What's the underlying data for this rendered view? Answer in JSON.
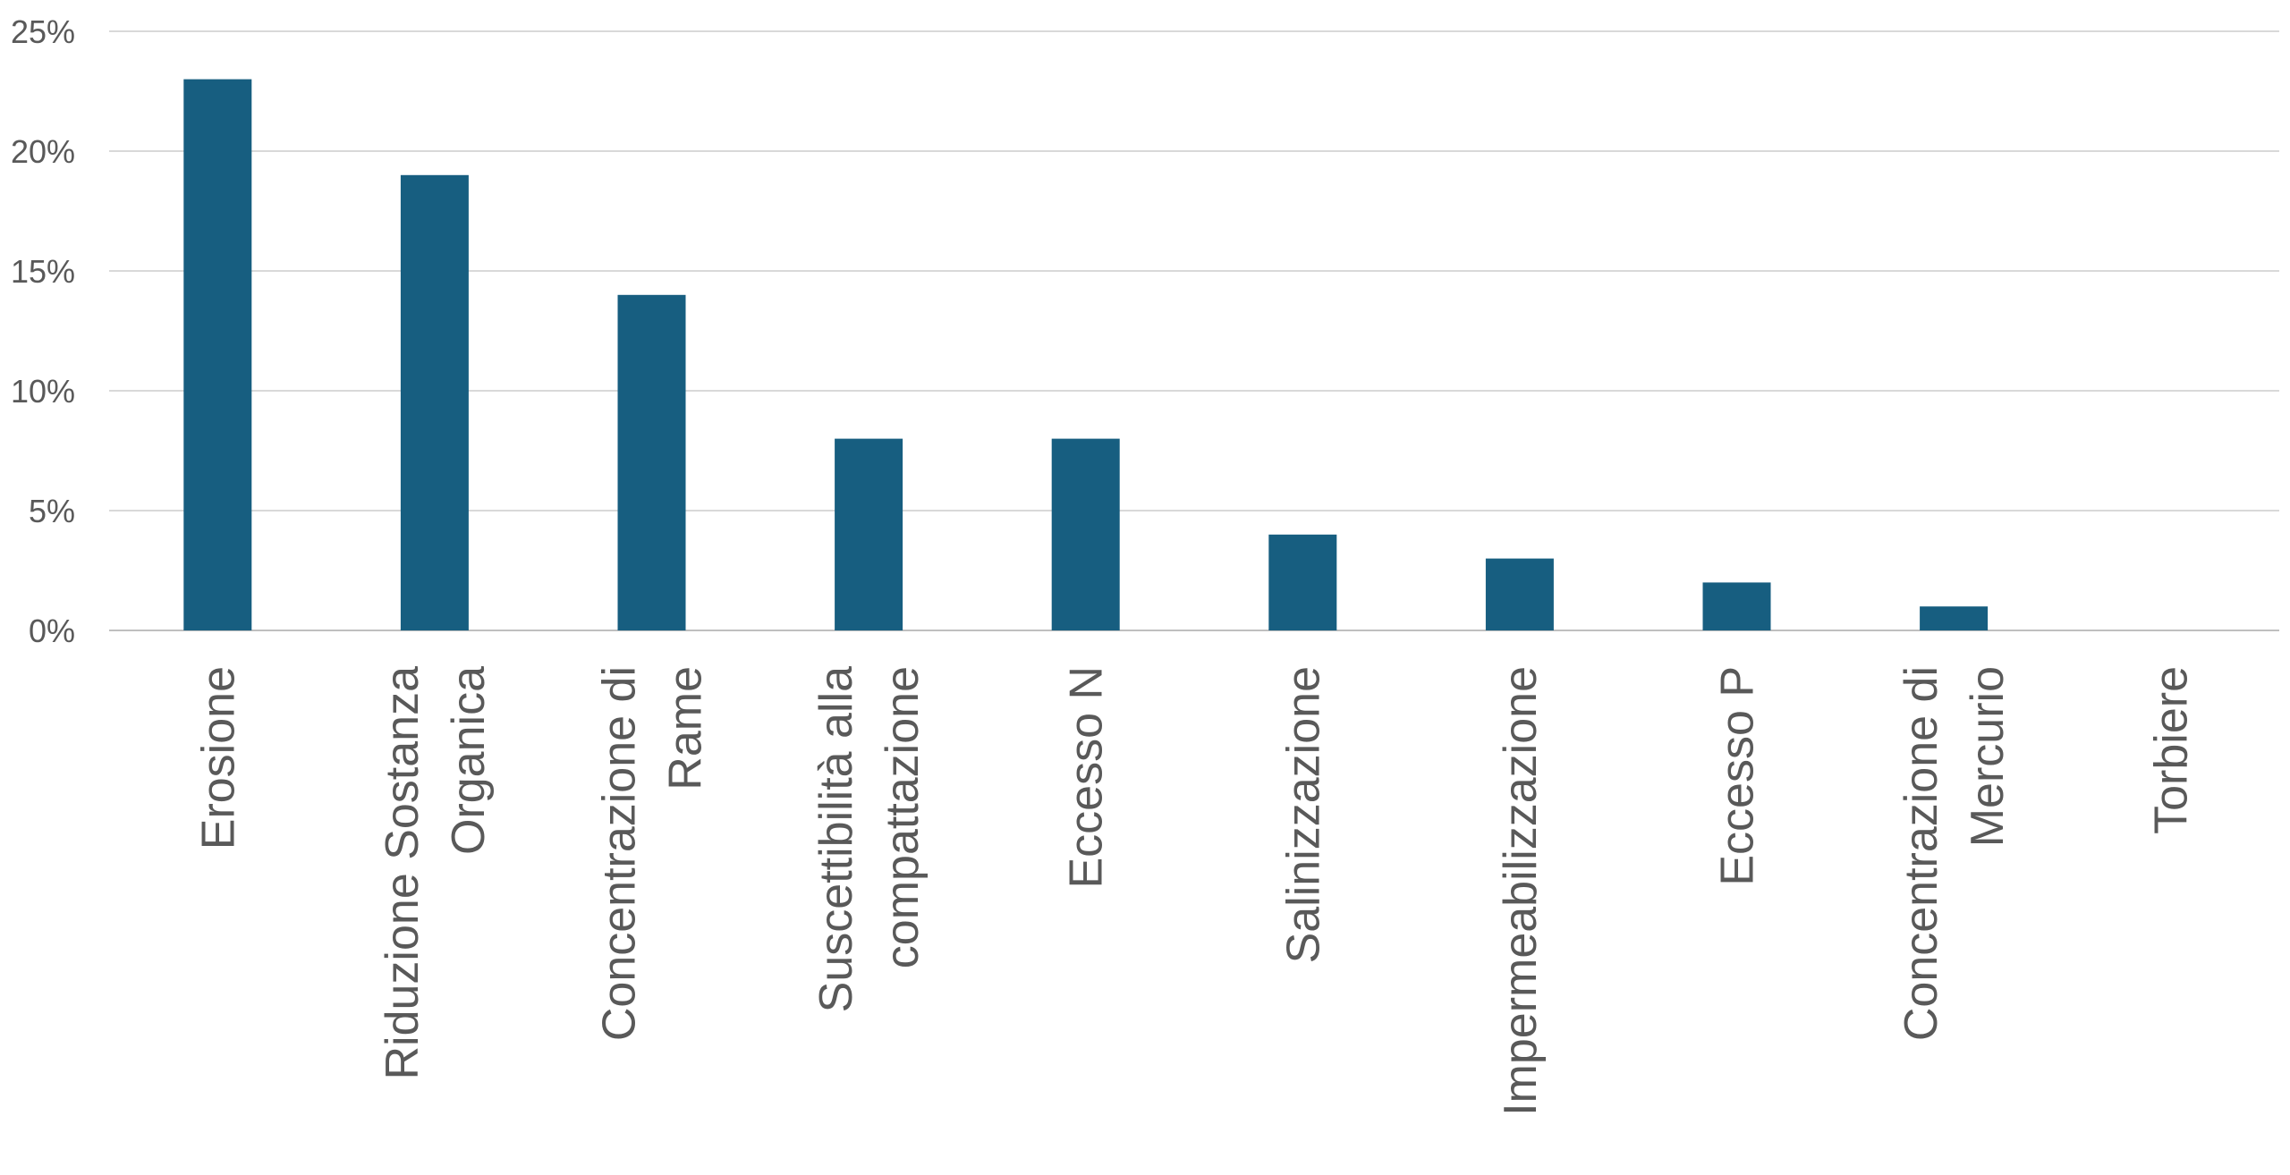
{
  "chart_data": {
    "type": "bar",
    "categories": [
      [
        "Erosione"
      ],
      [
        "Riduzione Sostanza",
        "Organica"
      ],
      [
        "Concentrazione di",
        "Rame"
      ],
      [
        "Suscettibilità alla",
        "compattazione"
      ],
      [
        "Eccesso N"
      ],
      [
        "Salinizzazione"
      ],
      [
        "Impermeabilizzazione"
      ],
      [
        "Eccesso P"
      ],
      [
        "Concentrazione di",
        "Mercurio"
      ],
      [
        "Torbiere"
      ]
    ],
    "values": [
      23,
      19,
      14,
      8,
      8,
      4,
      3,
      2,
      1,
      0
    ],
    "ylim": [
      0,
      25
    ],
    "yticks": [
      0,
      5,
      10,
      15,
      20,
      25
    ],
    "ytick_labels": [
      "0%",
      "5%",
      "10%",
      "15%",
      "20%",
      "25%"
    ],
    "title": "",
    "xlabel": "",
    "ylabel": "",
    "grid": true,
    "bar_color": "#175e80",
    "label_color": "#595959"
  }
}
